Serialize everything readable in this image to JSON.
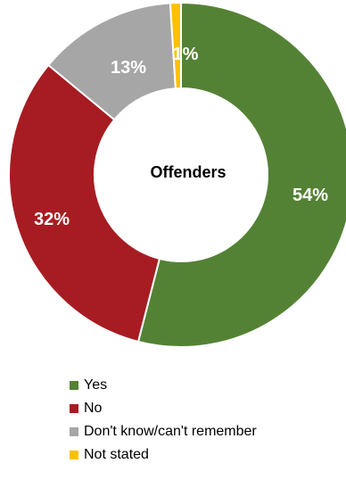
{
  "chart_data": {
    "type": "pie",
    "center_label": "Offenders",
    "slices": [
      {
        "label": "Yes",
        "value": 54,
        "value_label": "54%",
        "color": "#548235"
      },
      {
        "label": "No",
        "value": 32,
        "value_label": "32%",
        "color": "#A61C22"
      },
      {
        "label": "Don't know/can't remember",
        "value": 13,
        "value_label": "13%",
        "color": "#A6A6A6"
      },
      {
        "label": "Not stated",
        "value": 1,
        "value_label": "1%",
        "color": "#FFC000"
      }
    ],
    "legend_position": "bottom-left"
  }
}
